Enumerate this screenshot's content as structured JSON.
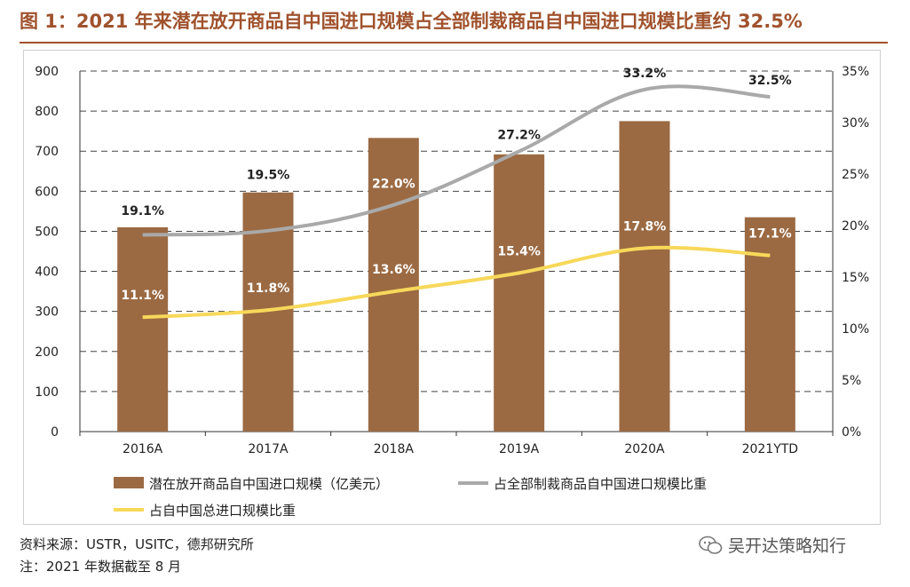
{
  "title": "图 1：2021 年来潜在放开商品自中国进口规模占全部制裁商品自中国进口规模比重约 32.5%",
  "source": "资料来源：USTR，USITC，德邦研究所",
  "note": "注：2021 年数据截至 8 月",
  "watermark": "吴开达策略知行",
  "colors": {
    "bar": "#9b6a43",
    "share_all": "#a9a9a9",
    "share_total": "#f7d85a",
    "title": "#a0522d"
  },
  "chart_data": {
    "type": "bar",
    "categories": [
      "2016A",
      "2017A",
      "2018A",
      "2019A",
      "2020A",
      "2021YTD"
    ],
    "ylim": [
      0,
      900
    ],
    "y_ticks": [
      0,
      100,
      200,
      300,
      400,
      500,
      600,
      700,
      800,
      900
    ],
    "y2lim": [
      0,
      35
    ],
    "y2_ticks": [
      "0%",
      "5%",
      "10%",
      "15%",
      "20%",
      "25%",
      "30%",
      "35%"
    ],
    "series": [
      {
        "name": "潜在放开商品自中国进口规模（亿美元）",
        "type": "bar",
        "axis": "left",
        "values": [
          510,
          597,
          733,
          692,
          775,
          535
        ]
      },
      {
        "name": "占全部制裁商品自中国进口规模比重",
        "type": "line",
        "axis": "right",
        "values": [
          19.1,
          19.5,
          22.0,
          27.2,
          33.2,
          32.5
        ],
        "labels": [
          "19.1%",
          "19.5%",
          "22.0%",
          "27.2%",
          "33.2%",
          "32.5%"
        ]
      },
      {
        "name": "占自中国总进口规模比重",
        "type": "line",
        "axis": "right",
        "values": [
          11.1,
          11.8,
          13.6,
          15.4,
          17.8,
          17.1
        ],
        "labels": [
          "11.1%",
          "11.8%",
          "13.6%",
          "15.4%",
          "17.8%",
          "17.1%"
        ]
      }
    ]
  }
}
